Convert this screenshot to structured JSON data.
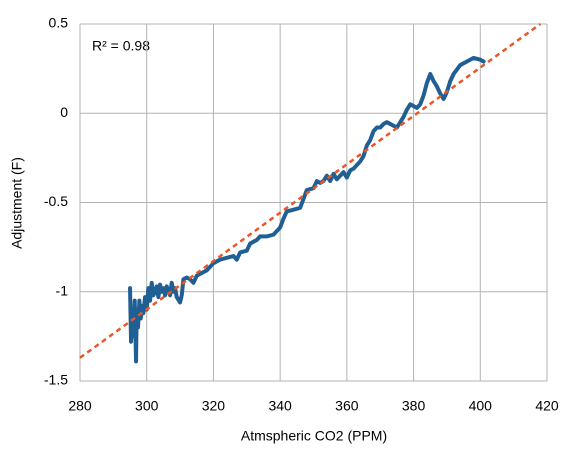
{
  "chart_data": {
    "type": "line",
    "annotation": "R² = 0.98",
    "x_label": "Atmspheric CO2 (PPM)",
    "y_label": "Adjustment (F)",
    "xlim": [
      280,
      420
    ],
    "xticks": [
      280,
      300,
      320,
      340,
      360,
      380,
      400,
      420
    ],
    "ylim": [
      -1.5,
      0.5
    ],
    "yticks": [
      -1.5,
      -1,
      -0.5,
      0,
      0.5
    ],
    "grid": true,
    "series": [
      {
        "color": "#1f5f94",
        "style": "solid",
        "x": [
          295,
          295.3,
          295.6,
          296,
          296.4,
          296.8,
          297,
          297.4,
          297.8,
          298.2,
          298.6,
          299,
          299.5,
          300,
          300.5,
          301,
          301.5,
          302,
          302.5,
          303,
          303.5,
          304,
          304.5,
          305,
          305.5,
          306,
          306.5,
          307,
          307.5,
          308,
          308.5,
          309,
          310,
          310.5,
          311,
          312,
          313,
          314,
          315,
          316,
          318,
          320,
          322,
          324,
          326,
          327,
          328,
          330,
          331,
          333,
          334,
          336,
          338,
          339,
          340,
          341,
          342,
          344,
          346,
          347,
          348,
          350,
          351,
          352,
          353,
          354,
          355,
          356,
          357,
          358,
          359,
          360,
          361,
          362,
          364,
          365,
          366,
          367,
          368,
          369,
          370,
          371,
          372,
          374,
          375,
          376,
          377,
          378,
          379,
          380,
          381,
          382,
          383,
          384,
          385,
          386,
          387,
          388,
          389,
          390,
          391,
          392,
          394,
          396,
          398,
          400,
          401
        ],
        "values": [
          -0.98,
          -1.28,
          -1.1,
          -1.25,
          -1.05,
          -1.39,
          -1.1,
          -1.2,
          -1.05,
          -1.15,
          -1.08,
          -1.12,
          -1.03,
          -1.1,
          -0.98,
          -1.05,
          -0.95,
          -1.02,
          -1.0,
          -0.97,
          -1.03,
          -0.96,
          -1.0,
          -0.98,
          -1.02,
          -0.97,
          -1.0,
          -1.02,
          -0.95,
          -1.0,
          -0.98,
          -1.03,
          -1.06,
          -1.02,
          -0.93,
          -0.92,
          -0.93,
          -0.95,
          -0.91,
          -0.9,
          -0.88,
          -0.84,
          -0.82,
          -0.81,
          -0.8,
          -0.82,
          -0.78,
          -0.77,
          -0.73,
          -0.71,
          -0.69,
          -0.69,
          -0.68,
          -0.66,
          -0.64,
          -0.59,
          -0.55,
          -0.54,
          -0.53,
          -0.48,
          -0.43,
          -0.42,
          -0.38,
          -0.39,
          -0.38,
          -0.35,
          -0.38,
          -0.34,
          -0.37,
          -0.35,
          -0.33,
          -0.36,
          -0.32,
          -0.31,
          -0.27,
          -0.24,
          -0.18,
          -0.15,
          -0.1,
          -0.08,
          -0.08,
          -0.06,
          -0.05,
          -0.07,
          -0.08,
          -0.05,
          -0.02,
          0.02,
          0.05,
          0.04,
          0.03,
          0.05,
          0.1,
          0.17,
          0.22,
          0.18,
          0.15,
          0.11,
          0.08,
          0.12,
          0.18,
          0.22,
          0.27,
          0.29,
          0.31,
          0.3,
          0.29
        ]
      },
      {
        "color": "#e8572a",
        "style": "dashed",
        "x": [
          280,
          418
        ],
        "values": [
          -1.37,
          0.5
        ]
      }
    ]
  }
}
